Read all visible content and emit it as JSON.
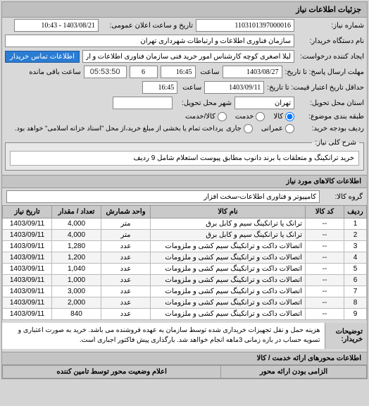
{
  "panel_title": "جزئیات اطلاعات نیاز",
  "fields": {
    "req_no_label": "شماره نیاز:",
    "req_no": "1103101397000016",
    "pub_date_label": "تاریخ و ساعت اعلان عمومی:",
    "pub_date": "1403/08/21 - 10:43",
    "buyer_label": "نام دستگاه خریدار:",
    "buyer": "سازمان فناوری اطلاعات و ارتباطات شهرداری تهران",
    "requester_label": "ایجاد کننده درخواست:",
    "requester": "لیلا اصغری کوچه کارشناس امور خرید فنی سازمان فناوری اطلاعات و ارتباطات ت",
    "contact_btn": "اطلاعات تماس خریدار",
    "deadline_label": "مهلت ارسال پاسخ: تا تاریخ:",
    "deadline_date": "1403/08/27",
    "time_label": "ساعت",
    "deadline_time": "16:45",
    "days_remain": "6",
    "days_remain_label": "ساعت باقی مانده",
    "timer": "05:53:50",
    "valid_until_label": "حداقل تاریخ اعتبار قیمت: تا تاریخ:",
    "valid_date": "1403/09/11",
    "valid_time": "16:45",
    "delivery_loc_label": "استان محل تحویل:",
    "delivery_loc": "تهران",
    "delivery_city_label": "شهر محل تحویل:",
    "delivery_city": "",
    "budget_type_label": "طبقه بندی موضوع:",
    "budget_radio1": "کالا",
    "budget_radio2": "خدمت",
    "budget_radio3": "کالا/خدمت",
    "budget_row_label": "ردیف بودجه خرید:",
    "budget_r1": "عمرانی",
    "budget_r2": "جاری",
    "budget_note": "پرداخت تمام یا بخشی از مبلغ خرید،از محل \"اسناد خزانه اسلامی\" خواهد بود."
  },
  "desc": {
    "legend": "شرح کلی نیاز:",
    "text": "خرید ترانکینگ و متعلقات با برند دانوب مطابق پیوست استعلام شامل 9 ردیف"
  },
  "goods": {
    "header": "اطلاعات کالاهای مورد نیاز",
    "group_label": "گروه کالا:",
    "group_value": "کامپیوتر و فناوری اطلاعات-سخت افزار",
    "cols": {
      "row": "ردیف",
      "code": "کد کالا",
      "name": "نام کالا",
      "unit": "واحد شمارش",
      "qty": "تعداد / مقدار",
      "date": "تاریخ نیاز"
    },
    "rows": [
      {
        "r": "1",
        "code": "--",
        "name": "ترانک یا ترانکینگ سیم و کابل برق",
        "unit": "متر",
        "qty": "4,000",
        "date": "1403/09/11"
      },
      {
        "r": "2",
        "code": "--",
        "name": "ترانک یا ترانکینگ سیم و کابل برق",
        "unit": "متر",
        "qty": "4,000",
        "date": "1403/09/11"
      },
      {
        "r": "3",
        "code": "--",
        "name": "اتصالات داکت و ترانکینگ سیم کشی و ملزومات",
        "unit": "عدد",
        "qty": "1,280",
        "date": "1403/09/11"
      },
      {
        "r": "4",
        "code": "--",
        "name": "اتصالات داکت و ترانکینگ سیم کشی و ملزومات",
        "unit": "عدد",
        "qty": "1,200",
        "date": "1403/09/11"
      },
      {
        "r": "5",
        "code": "--",
        "name": "اتصالات داکت و ترانکینگ سیم کشی و ملزومات",
        "unit": "عدد",
        "qty": "1,040",
        "date": "1403/09/11"
      },
      {
        "r": "6",
        "code": "--",
        "name": "اتصالات داکت و ترانکینگ سیم کشی و ملزومات",
        "unit": "عدد",
        "qty": "1,000",
        "date": "1403/09/11"
      },
      {
        "r": "7",
        "code": "--",
        "name": "اتصالات داکت و ترانکینگ سیم کشی و ملزومات",
        "unit": "عدد",
        "qty": "3,000",
        "date": "1403/09/11"
      },
      {
        "r": "8",
        "code": "--",
        "name": "اتصالات داکت و ترانکینگ سیم کشی و ملزومات",
        "unit": "عدد",
        "qty": "2,000",
        "date": "1403/09/11"
      },
      {
        "r": "9",
        "code": "--",
        "name": "اتصالات داکت و ترانکینگ سیم کشی و ملزومات",
        "unit": "عدد",
        "qty": "840",
        "date": "1403/09/11"
      }
    ]
  },
  "notes": {
    "label": "توضیحات خریدار:",
    "text": "هزینه حمل و نقل تجهیزات خریداری شده توسط سازمان به عهده فروشنده می باشد. خرید به صورت اعتباری و تسویه حساب در بازه زمانی 3ماهه انجام خوااهد شد. بارگذاری پیش فاکتور اجباری است."
  },
  "axes_header": "اطلاعات محورهای ارائه خدمت / کالا",
  "bottom_cols": {
    "c1": "الزامی بودن ارائه محور",
    "c2": "اعلام وضعیت محور توسط تامین کننده"
  }
}
